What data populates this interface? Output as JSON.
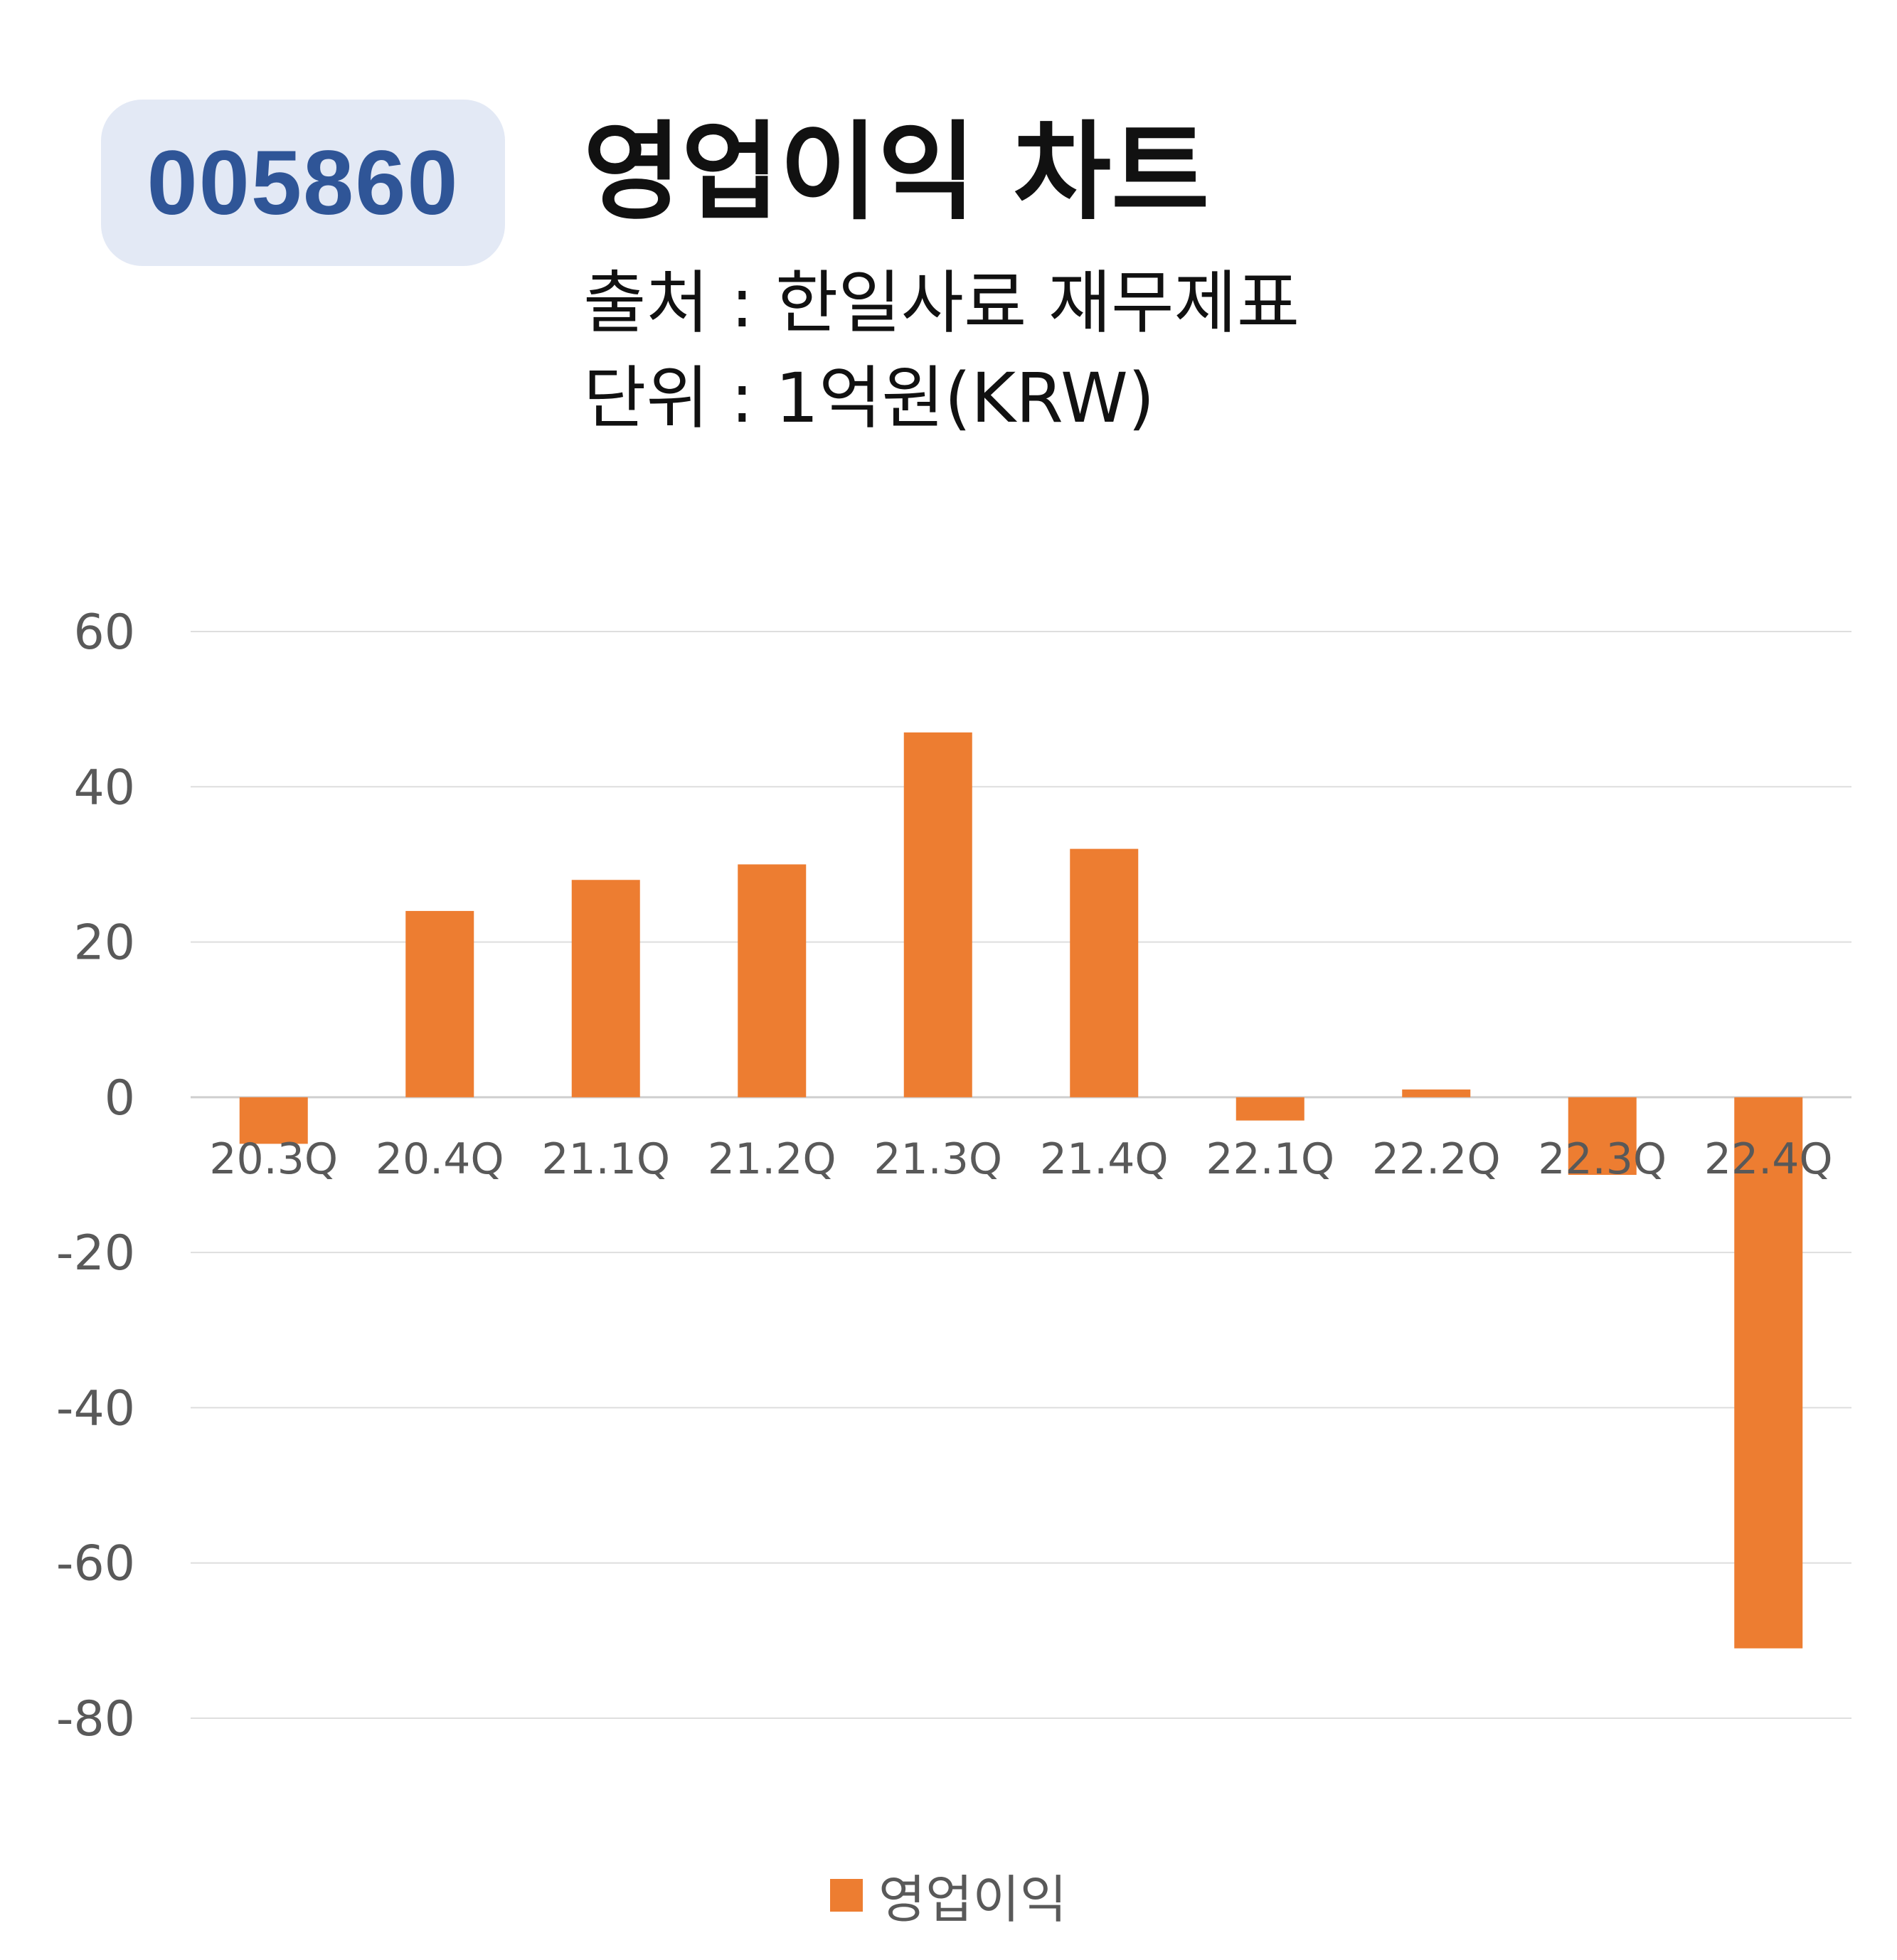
{
  "header": {
    "ticker": "005860",
    "title": "영업이익 차트",
    "source": "출처 : 한일사료 재무제표",
    "unit": "단위 : 1억원(KRW)"
  },
  "chart_data": {
    "type": "bar",
    "categories": [
      "20.3Q",
      "20.4Q",
      "21.1Q",
      "21.2Q",
      "21.3Q",
      "21.4Q",
      "22.1Q",
      "22.2Q",
      "22.3Q",
      "22.4Q"
    ],
    "series": [
      {
        "name": "영업이익",
        "color": "#ed7d31",
        "values": [
          -6,
          24,
          28,
          30,
          47,
          32,
          -3,
          1,
          -10,
          -71
        ]
      }
    ],
    "yticks": [
      60,
      40,
      20,
      0,
      -20,
      -40,
      -60,
      -80
    ],
    "ylim": [
      -80,
      60
    ],
    "grid": true,
    "legend_position": "bottom-center"
  }
}
